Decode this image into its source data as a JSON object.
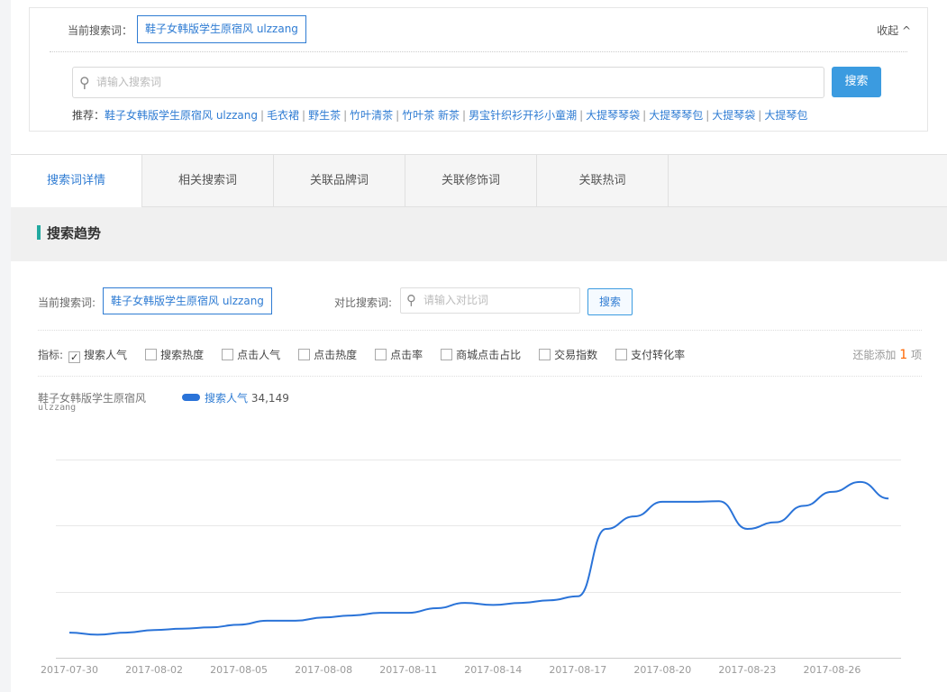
{
  "top": {
    "current_label": "当前搜索词：",
    "current_value": "鞋子女韩版学生原宿风 ulzzang",
    "collapse": "收起 ^",
    "search_placeholder": "请输入搜索词",
    "search_button": "搜索",
    "rec_label": "推荐：",
    "recommendations": [
      "鞋子女韩版学生原宿风 ulzzang",
      "毛衣裙",
      "野生茶",
      "竹叶清茶",
      "竹叶茶 新茶",
      "男宝针织衫开衫小童潮",
      "大提琴琴袋",
      "大提琴琴包",
      "大提琴袋",
      "大提琴包"
    ]
  },
  "tabs": [
    "搜索词详情",
    "相关搜索词",
    "关联品牌词",
    "关联修饰词",
    "关联热词"
  ],
  "section": {
    "title": "搜索趋势"
  },
  "compare": {
    "current_label": "当前搜索词:",
    "current_value": "鞋子女韩版学生原宿风 ulzzang",
    "compare_label": "对比搜索词:",
    "compare_placeholder": "请输入对比词",
    "button": "搜索"
  },
  "metrics": {
    "label": "指标:",
    "items": [
      {
        "label": "搜索人气",
        "checked": true
      },
      {
        "label": "搜索热度",
        "checked": false
      },
      {
        "label": "点击人气",
        "checked": false
      },
      {
        "label": "点击热度",
        "checked": false
      },
      {
        "label": "点击率",
        "checked": false
      },
      {
        "label": "商城点击占比",
        "checked": false
      },
      {
        "label": "交易指数",
        "checked": false
      },
      {
        "label": "支付转化率",
        "checked": false
      }
    ],
    "remaining_prefix": "还能添加",
    "remaining_count": "1",
    "remaining_suffix": "项"
  },
  "chart_data": {
    "type": "line",
    "title_line1": "鞋子女韩版学生原宿风",
    "title_line2": "ulzzang",
    "legend": {
      "name": "搜索人气",
      "value": "34,149"
    },
    "color": "#2a73d8",
    "grid": true,
    "x": [
      "2017-07-30",
      "2017-07-31",
      "2017-08-01",
      "2017-08-02",
      "2017-08-03",
      "2017-08-04",
      "2017-08-05",
      "2017-08-06",
      "2017-08-07",
      "2017-08-08",
      "2017-08-09",
      "2017-08-10",
      "2017-08-11",
      "2017-08-12",
      "2017-08-13",
      "2017-08-14",
      "2017-08-15",
      "2017-08-16",
      "2017-08-17",
      "2017-08-18",
      "2017-08-19",
      "2017-08-20",
      "2017-08-21",
      "2017-08-22",
      "2017-08-23",
      "2017-08-24",
      "2017-08-25",
      "2017-08-26",
      "2017-08-27",
      "2017-08-28"
    ],
    "xticks": [
      "2017-07-30",
      "2017-08-02",
      "2017-08-05",
      "2017-08-08",
      "2017-08-11",
      "2017-08-14",
      "2017-08-17",
      "2017-08-20",
      "2017-08-23",
      "2017-08-26"
    ],
    "series": [
      {
        "name": "搜索人气",
        "values": [
          38,
          35,
          38,
          42,
          44,
          46,
          50,
          56,
          56,
          61,
          64,
          68,
          68,
          75,
          83,
          80,
          83,
          87,
          93,
          195,
          214,
          236,
          236,
          237,
          195,
          205,
          230,
          251,
          266,
          241
        ]
      }
    ],
    "ylim": [
      0,
      300
    ]
  }
}
